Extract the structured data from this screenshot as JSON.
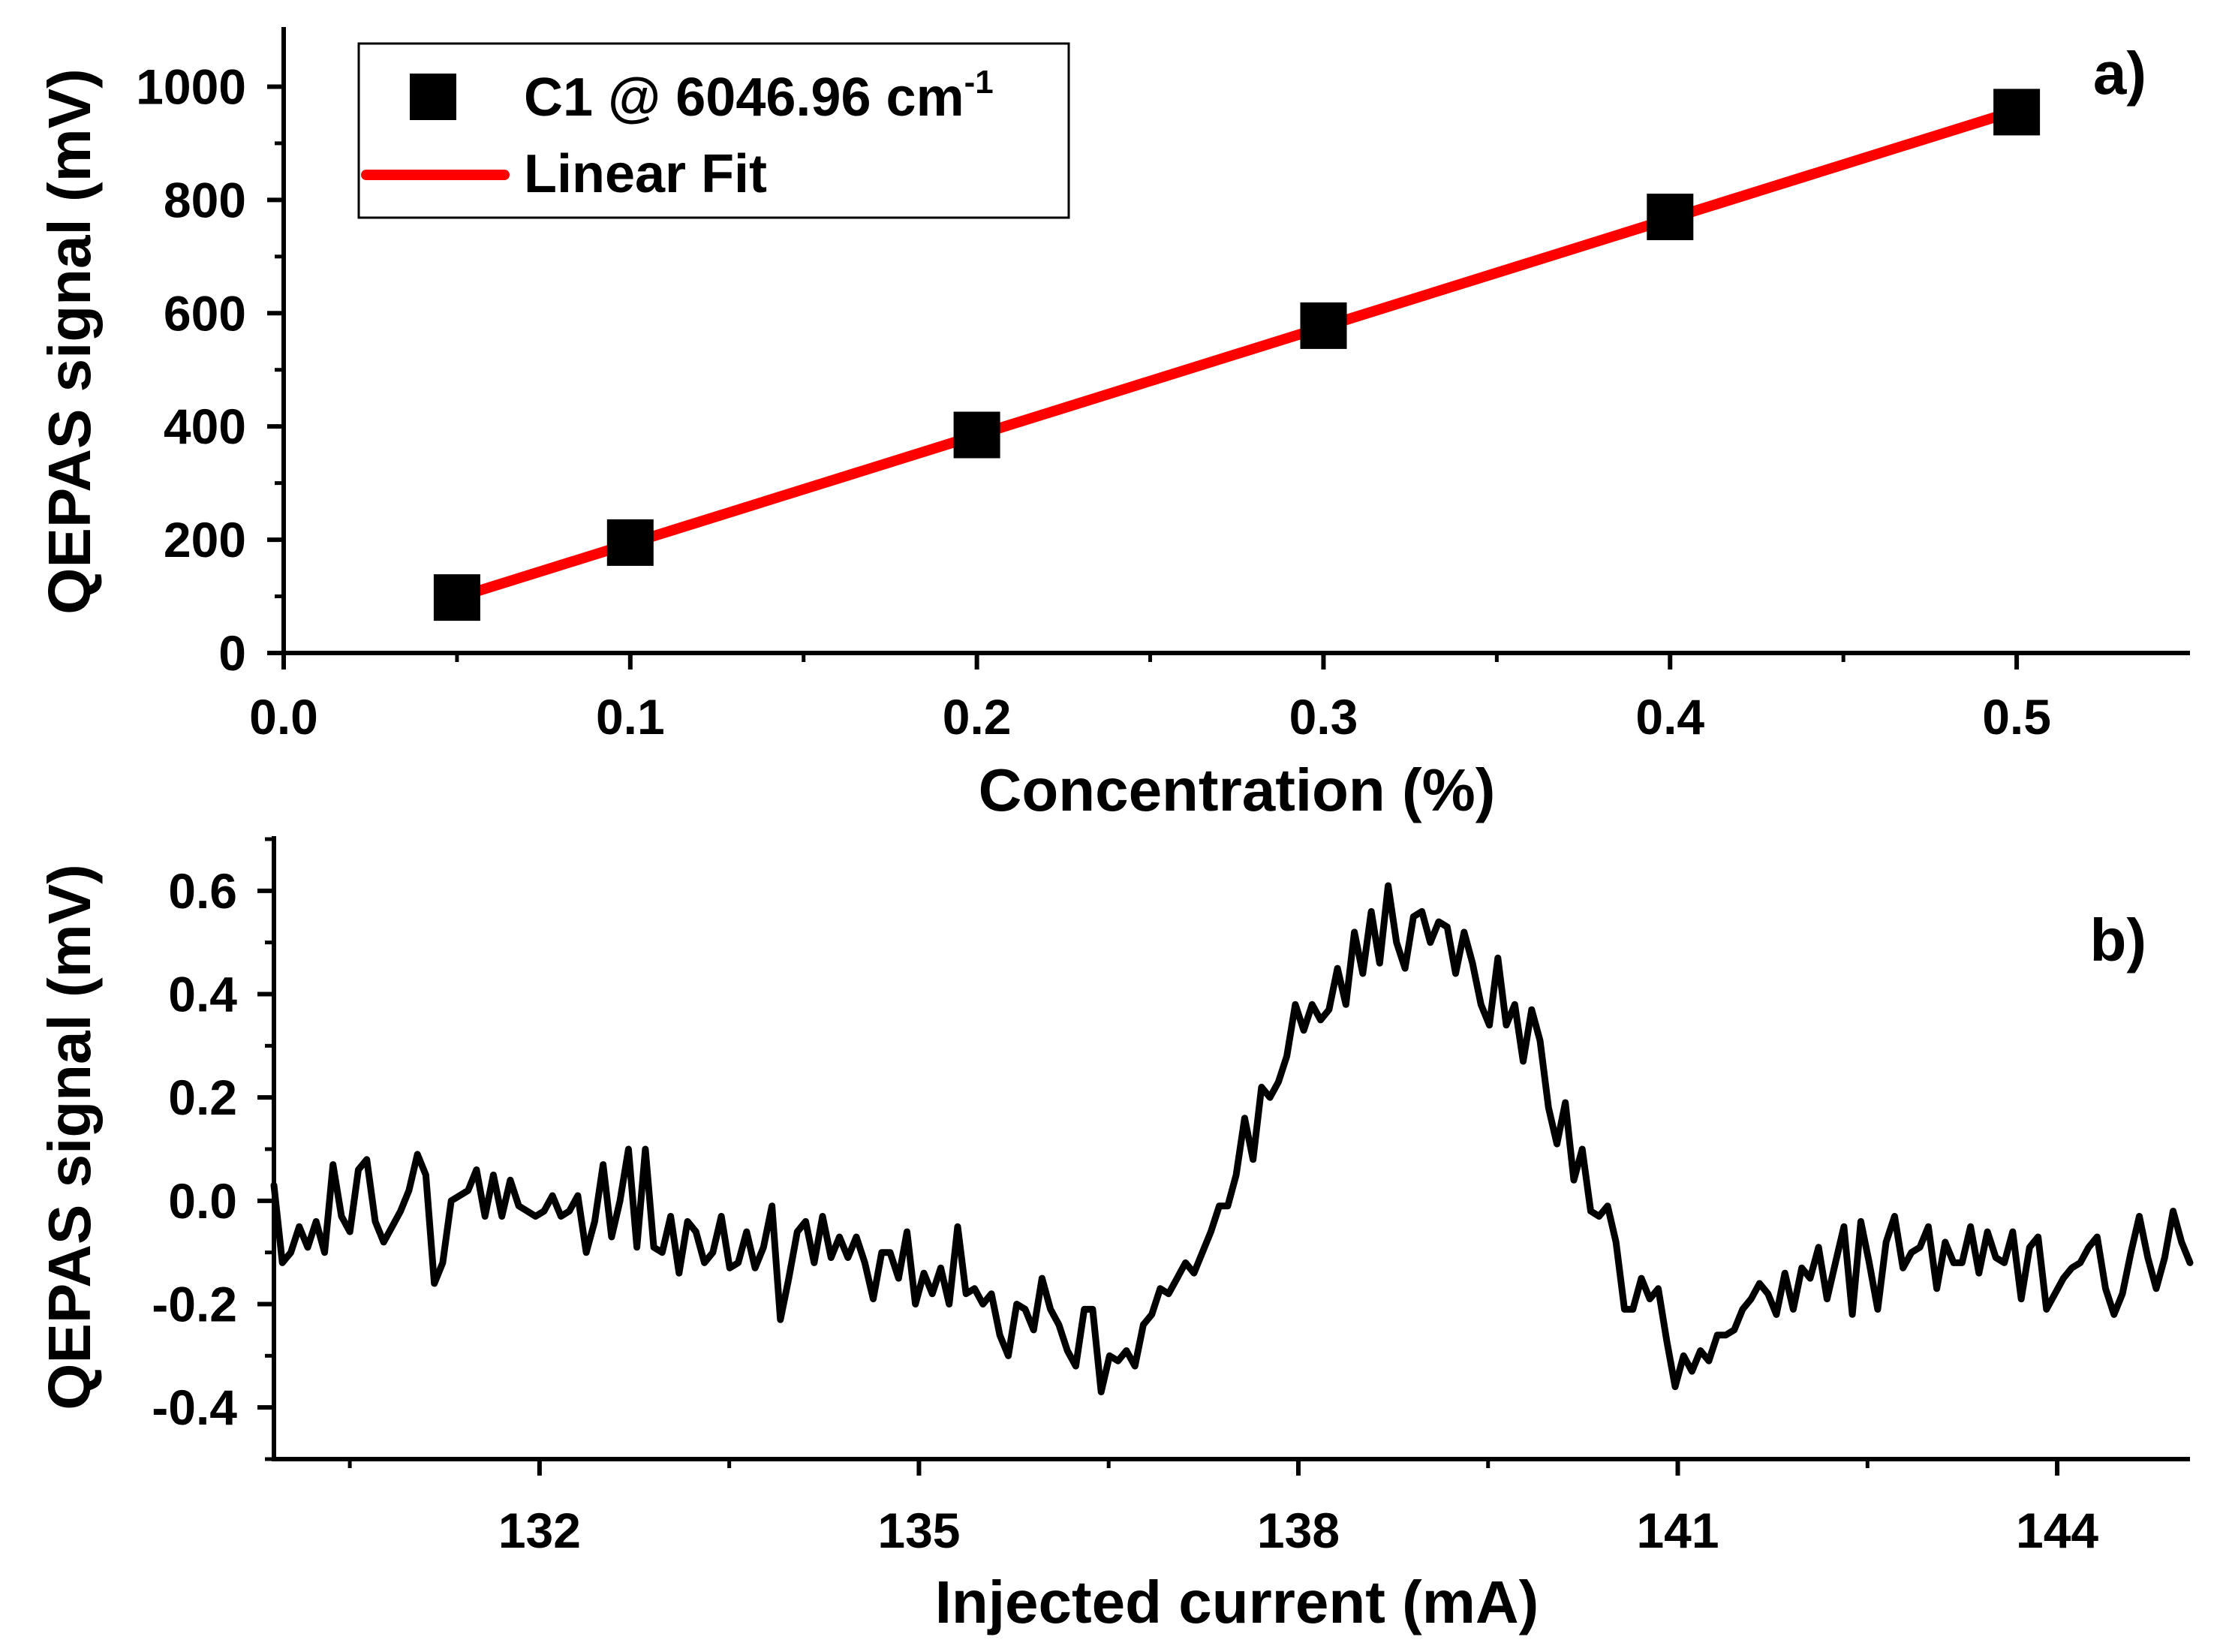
{
  "chart_data": [
    {
      "type": "scatter",
      "panel_label": "a)",
      "title": "",
      "xlabel": "Concentration (%)",
      "ylabel": "QEPAS signal (mV)",
      "xlim": [
        0,
        0.55
      ],
      "ylim": [
        0,
        1100
      ],
      "xticks": [
        0.0,
        0.1,
        0.2,
        0.3,
        0.4,
        0.5
      ],
      "xtick_labels": [
        "0.0",
        "0.1",
        "0.2",
        "0.3",
        "0.4",
        "0.5"
      ],
      "yticks": [
        0,
        200,
        400,
        600,
        800,
        1000
      ],
      "ytick_labels": [
        "0",
        "200",
        "400",
        "600",
        "800",
        "1000"
      ],
      "legend": {
        "placement": "top-left",
        "entries": [
          {
            "label": "C1 @ 6046.96 cm",
            "superscript": "-1",
            "marker": "square",
            "color": "#000000"
          },
          {
            "label": "Linear Fit",
            "marker": "line",
            "color": "#ff0000"
          }
        ]
      },
      "series": [
        {
          "name": "C1 @ 6046.96 cm-1",
          "kind": "scatter",
          "color": "#000000",
          "x": [
            0.05,
            0.1,
            0.2,
            0.3,
            0.4,
            0.5
          ],
          "y": [
            98,
            195,
            385,
            578,
            770,
            955
          ]
        },
        {
          "name": "Linear Fit",
          "kind": "line",
          "color": "#ff0000",
          "x": [
            0.05,
            0.5
          ],
          "y": [
            98,
            958
          ]
        }
      ]
    },
    {
      "type": "line",
      "panel_label": "b)",
      "title": "",
      "xlabel": "Injected current (mA)",
      "ylabel": "QEPAS signal (mV)",
      "xlim": [
        129.9,
        145.05
      ],
      "ylim": [
        -0.5,
        0.7
      ],
      "xticks": [
        132,
        135,
        138,
        141,
        144
      ],
      "xtick_labels": [
        "132",
        "135",
        "138",
        "141",
        "144"
      ],
      "yticks": [
        -0.4,
        -0.2,
        0.0,
        0.2,
        0.4,
        0.6
      ],
      "ytick_labels": [
        "-0.4",
        "-0.2",
        "0.0",
        "0.2",
        "0.4",
        "0.6"
      ],
      "series": [
        {
          "name": "QEPAS signal",
          "color": "#000000",
          "x_start": 129.9,
          "x_end": 145.05,
          "y": [
            0.03,
            -0.12,
            -0.1,
            -0.05,
            -0.09,
            -0.04,
            -0.1,
            0.07,
            -0.03,
            -0.06,
            0.06,
            0.08,
            -0.04,
            -0.08,
            -0.05,
            -0.02,
            0.02,
            0.09,
            0.05,
            -0.16,
            -0.12,
            0.0,
            0.01,
            0.02,
            0.06,
            -0.03,
            0.05,
            -0.03,
            0.04,
            -0.01,
            -0.02,
            -0.03,
            -0.02,
            0.01,
            -0.03,
            -0.02,
            0.01,
            -0.1,
            -0.04,
            0.07,
            -0.07,
            0.0,
            0.1,
            -0.09,
            0.1,
            -0.09,
            -0.1,
            -0.03,
            -0.14,
            -0.04,
            -0.06,
            -0.12,
            -0.1,
            -0.03,
            -0.13,
            -0.12,
            -0.06,
            -0.13,
            -0.09,
            -0.01,
            -0.23,
            -0.15,
            -0.06,
            -0.04,
            -0.12,
            -0.03,
            -0.11,
            -0.07,
            -0.11,
            -0.07,
            -0.12,
            -0.19,
            -0.1,
            -0.1,
            -0.15,
            -0.06,
            -0.2,
            -0.14,
            -0.18,
            -0.13,
            -0.2,
            -0.05,
            -0.18,
            -0.17,
            -0.2,
            -0.18,
            -0.26,
            -0.3,
            -0.2,
            -0.21,
            -0.25,
            -0.15,
            -0.21,
            -0.24,
            -0.29,
            -0.32,
            -0.21,
            -0.21,
            -0.37,
            -0.3,
            -0.31,
            -0.29,
            -0.32,
            -0.24,
            -0.22,
            -0.17,
            -0.18,
            -0.15,
            -0.12,
            -0.14,
            -0.1,
            -0.06,
            -0.01,
            -0.01,
            0.05,
            0.16,
            0.08,
            0.22,
            0.2,
            0.23,
            0.28,
            0.38,
            0.33,
            0.38,
            0.35,
            0.37,
            0.45,
            0.38,
            0.52,
            0.44,
            0.56,
            0.46,
            0.61,
            0.5,
            0.45,
            0.55,
            0.56,
            0.5,
            0.54,
            0.53,
            0.44,
            0.52,
            0.46,
            0.38,
            0.34,
            0.47,
            0.34,
            0.38,
            0.27,
            0.37,
            0.31,
            0.18,
            0.11,
            0.19,
            0.04,
            0.1,
            -0.02,
            -0.03,
            -0.01,
            -0.08,
            -0.21,
            -0.21,
            -0.15,
            -0.19,
            -0.17,
            -0.27,
            -0.36,
            -0.3,
            -0.33,
            -0.29,
            -0.31,
            -0.26,
            -0.26,
            -0.25,
            -0.21,
            -0.19,
            -0.16,
            -0.18,
            -0.22,
            -0.14,
            -0.21,
            -0.13,
            -0.15,
            -0.09,
            -0.19,
            -0.12,
            -0.05,
            -0.22,
            -0.04,
            -0.12,
            -0.21,
            -0.08,
            -0.03,
            -0.13,
            -0.1,
            -0.09,
            -0.05,
            -0.17,
            -0.08,
            -0.12,
            -0.12,
            -0.05,
            -0.14,
            -0.06,
            -0.11,
            -0.12,
            -0.06,
            -0.19,
            -0.09,
            -0.07,
            -0.21,
            -0.18,
            -0.15,
            -0.13,
            -0.12,
            -0.09,
            -0.07,
            -0.17,
            -0.22,
            -0.18,
            -0.1,
            -0.03,
            -0.11,
            -0.17,
            -0.11,
            -0.02,
            -0.08,
            -0.12
          ]
        }
      ]
    }
  ]
}
